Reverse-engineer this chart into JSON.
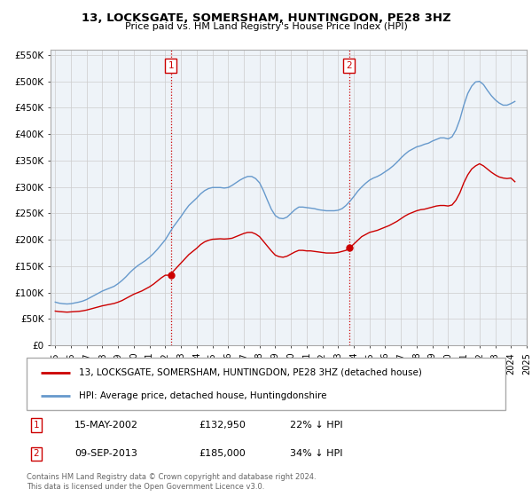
{
  "title": "13, LOCKSGATE, SOMERSHAM, HUNTINGDON, PE28 3HZ",
  "subtitle": "Price paid vs. HM Land Registry's House Price Index (HPI)",
  "legend_line1": "13, LOCKSGATE, SOMERSHAM, HUNTINGDON, PE28 3HZ (detached house)",
  "legend_line2": "HPI: Average price, detached house, Huntingdonshire",
  "marker1_date": "15-MAY-2002",
  "marker1_price": "£132,950",
  "marker1_hpi": "22% ↓ HPI",
  "marker2_date": "09-SEP-2013",
  "marker2_price": "£185,000",
  "marker2_hpi": "34% ↓ HPI",
  "footnote": "Contains HM Land Registry data © Crown copyright and database right 2024.\nThis data is licensed under the Open Government Licence v3.0.",
  "red_color": "#cc0000",
  "blue_color": "#6699cc",
  "marker_box_color": "#cc0000",
  "bg_color": "#eef3f8",
  "ylim": [
    0,
    560000
  ],
  "yticks": [
    0,
    50000,
    100000,
    150000,
    200000,
    250000,
    300000,
    350000,
    400000,
    450000,
    500000,
    550000
  ],
  "ytick_labels": [
    "£0",
    "£50K",
    "£100K",
    "£150K",
    "£200K",
    "£250K",
    "£300K",
    "£350K",
    "£400K",
    "£450K",
    "£500K",
    "£550K"
  ],
  "hpi_years": [
    1995.0,
    1995.25,
    1995.5,
    1995.75,
    1996.0,
    1996.25,
    1996.5,
    1996.75,
    1997.0,
    1997.25,
    1997.5,
    1997.75,
    1998.0,
    1998.25,
    1998.5,
    1998.75,
    1999.0,
    1999.25,
    1999.5,
    1999.75,
    2000.0,
    2000.25,
    2000.5,
    2000.75,
    2001.0,
    2001.25,
    2001.5,
    2001.75,
    2002.0,
    2002.25,
    2002.5,
    2002.75,
    2003.0,
    2003.25,
    2003.5,
    2003.75,
    2004.0,
    2004.25,
    2004.5,
    2004.75,
    2005.0,
    2005.25,
    2005.5,
    2005.75,
    2006.0,
    2006.25,
    2006.5,
    2006.75,
    2007.0,
    2007.25,
    2007.5,
    2007.75,
    2008.0,
    2008.25,
    2008.5,
    2008.75,
    2009.0,
    2009.25,
    2009.5,
    2009.75,
    2010.0,
    2010.25,
    2010.5,
    2010.75,
    2011.0,
    2011.25,
    2011.5,
    2011.75,
    2012.0,
    2012.25,
    2012.5,
    2012.75,
    2013.0,
    2013.25,
    2013.5,
    2013.75,
    2014.0,
    2014.25,
    2014.5,
    2014.75,
    2015.0,
    2015.25,
    2015.5,
    2015.75,
    2016.0,
    2016.25,
    2016.5,
    2016.75,
    2017.0,
    2017.25,
    2017.5,
    2017.75,
    2018.0,
    2018.25,
    2018.5,
    2018.75,
    2019.0,
    2019.25,
    2019.5,
    2019.75,
    2020.0,
    2020.25,
    2020.5,
    2020.75,
    2021.0,
    2021.25,
    2021.5,
    2021.75,
    2022.0,
    2022.25,
    2022.5,
    2022.75,
    2023.0,
    2023.25,
    2023.5,
    2023.75,
    2024.0,
    2024.25
  ],
  "hpi_values": [
    82000,
    80000,
    79000,
    78500,
    79000,
    80500,
    82000,
    84000,
    87000,
    91000,
    95000,
    99000,
    103000,
    106000,
    109000,
    112000,
    117000,
    123000,
    130000,
    138000,
    145000,
    151000,
    156000,
    161000,
    167000,
    174000,
    182000,
    191000,
    200000,
    212000,
    224000,
    234000,
    244000,
    255000,
    265000,
    272000,
    279000,
    287000,
    293000,
    297000,
    299000,
    299000,
    299000,
    298000,
    299000,
    303000,
    308000,
    313000,
    317000,
    320000,
    320000,
    316000,
    308000,
    293000,
    275000,
    258000,
    246000,
    241000,
    240000,
    243000,
    250000,
    257000,
    262000,
    262000,
    261000,
    260000,
    259000,
    257000,
    256000,
    255000,
    255000,
    255000,
    256000,
    259000,
    265000,
    273000,
    282000,
    292000,
    300000,
    307000,
    313000,
    317000,
    320000,
    324000,
    329000,
    334000,
    340000,
    347000,
    355000,
    362000,
    368000,
    372000,
    376000,
    378000,
    381000,
    383000,
    387000,
    390000,
    393000,
    393000,
    391000,
    395000,
    408000,
    428000,
    455000,
    477000,
    491000,
    499000,
    500000,
    494000,
    483000,
    473000,
    465000,
    459000,
    455000,
    455000,
    458000,
    462000
  ],
  "red_sale_years": [
    2002.37,
    2013.69
  ],
  "red_sale_prices": [
    132950,
    185000
  ],
  "red_line_years": [
    1995.0,
    1995.25,
    1995.5,
    1995.75,
    1996.0,
    1996.25,
    1996.5,
    1996.75,
    1997.0,
    1997.25,
    1997.5,
    1997.75,
    1998.0,
    1998.25,
    1998.5,
    1998.75,
    1999.0,
    1999.25,
    1999.5,
    1999.75,
    2000.0,
    2000.25,
    2000.5,
    2000.75,
    2001.0,
    2001.25,
    2001.5,
    2001.75,
    2002.0,
    2002.25,
    2002.5,
    2002.75,
    2003.0,
    2003.25,
    2003.5,
    2003.75,
    2004.0,
    2004.25,
    2004.5,
    2004.75,
    2005.0,
    2005.25,
    2005.5,
    2005.75,
    2006.0,
    2006.25,
    2006.5,
    2006.75,
    2007.0,
    2007.25,
    2007.5,
    2007.75,
    2008.0,
    2008.25,
    2008.5,
    2008.75,
    2009.0,
    2009.25,
    2009.5,
    2009.75,
    2010.0,
    2010.25,
    2010.5,
    2010.75,
    2011.0,
    2011.25,
    2011.5,
    2011.75,
    2012.0,
    2012.25,
    2012.5,
    2012.75,
    2013.0,
    2013.25,
    2013.5,
    2013.75,
    2014.0,
    2014.25,
    2014.5,
    2014.75,
    2015.0,
    2015.25,
    2015.5,
    2015.75,
    2016.0,
    2016.25,
    2016.5,
    2016.75,
    2017.0,
    2017.25,
    2017.5,
    2017.75,
    2018.0,
    2018.25,
    2018.5,
    2018.75,
    2019.0,
    2019.25,
    2019.5,
    2019.75,
    2020.0,
    2020.25,
    2020.5,
    2020.75,
    2021.0,
    2021.25,
    2021.5,
    2021.75,
    2022.0,
    2022.25,
    2022.5,
    2022.75,
    2023.0,
    2023.25,
    2023.5,
    2023.75,
    2024.0,
    2024.25
  ],
  "red_line_values": [
    65000,
    64000,
    63500,
    63000,
    63500,
    64000,
    64500,
    65500,
    67000,
    69000,
    71000,
    73000,
    75000,
    76500,
    78000,
    79500,
    82000,
    85000,
    89000,
    93000,
    97000,
    100000,
    103000,
    107000,
    111000,
    116000,
    122000,
    128000,
    132950,
    132950,
    140000,
    148000,
    156000,
    164000,
    172000,
    178000,
    184000,
    191000,
    196000,
    199000,
    201000,
    201500,
    202000,
    201500,
    202000,
    203000,
    206000,
    209000,
    212000,
    214000,
    214000,
    211000,
    206000,
    197000,
    188000,
    179000,
    171000,
    168000,
    167000,
    169000,
    173000,
    177000,
    180000,
    180000,
    179000,
    179000,
    178000,
    177000,
    176000,
    175000,
    175000,
    175000,
    176000,
    178000,
    180000,
    185000,
    192000,
    199000,
    206000,
    210000,
    214000,
    216000,
    218000,
    221000,
    224000,
    227000,
    231000,
    235000,
    240000,
    245000,
    249000,
    252000,
    255000,
    257000,
    258000,
    260000,
    262000,
    264000,
    265000,
    265000,
    264000,
    266000,
    275000,
    289000,
    308000,
    323000,
    334000,
    340000,
    344000,
    340000,
    334000,
    328000,
    323000,
    319000,
    317000,
    316000,
    317000,
    310000
  ]
}
